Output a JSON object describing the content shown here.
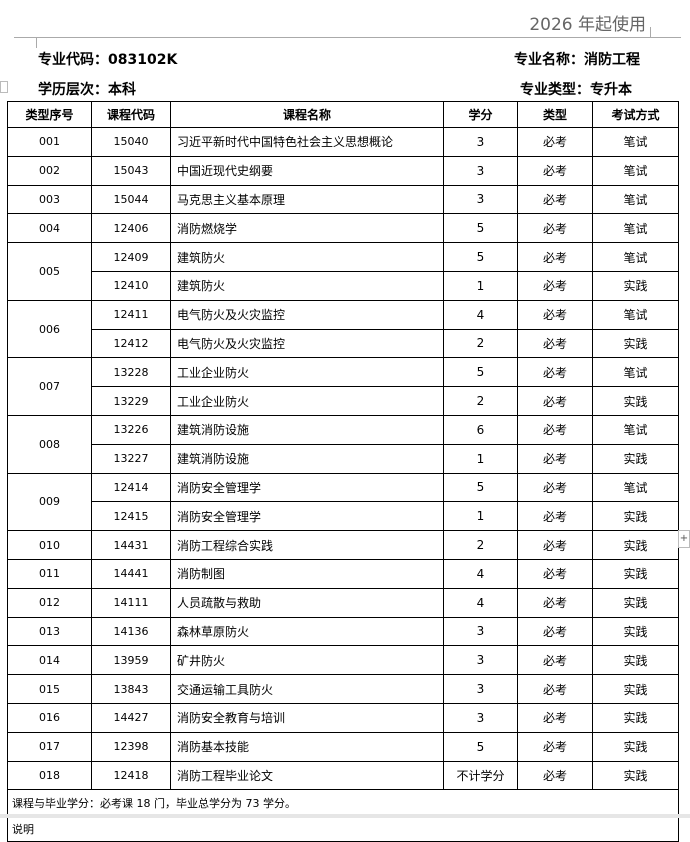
{
  "header_note": "2026 年起使用",
  "info": {
    "major_code": "专业代码：083102K",
    "major_name": "专业名称：消防工程",
    "level": "学历层次：本科",
    "major_type": "专业类型：专升本"
  },
  "table": {
    "columns": [
      "类型序号",
      "课程代码",
      "课程名称",
      "学分",
      "类型",
      "考试方式"
    ],
    "groups": [
      {
        "seq": "001",
        "courses": [
          {
            "code": "15040",
            "name": "习近平新时代中国特色社会主义思想概论",
            "credit": "3",
            "type": "必考",
            "exam": "笔试"
          }
        ]
      },
      {
        "seq": "002",
        "courses": [
          {
            "code": "15043",
            "name": "中国近现代史纲要",
            "credit": "3",
            "type": "必考",
            "exam": "笔试"
          }
        ]
      },
      {
        "seq": "003",
        "courses": [
          {
            "code": "15044",
            "name": "马克思主义基本原理",
            "credit": "3",
            "type": "必考",
            "exam": "笔试"
          }
        ]
      },
      {
        "seq": "004",
        "courses": [
          {
            "code": "12406",
            "name": "消防燃烧学",
            "credit": "5",
            "type": "必考",
            "exam": "笔试"
          }
        ]
      },
      {
        "seq": "005",
        "courses": [
          {
            "code": "12409",
            "name": "建筑防火",
            "credit": "5",
            "type": "必考",
            "exam": "笔试"
          },
          {
            "code": "12410",
            "name": "建筑防火",
            "credit": "1",
            "type": "必考",
            "exam": "实践"
          }
        ]
      },
      {
        "seq": "006",
        "courses": [
          {
            "code": "12411",
            "name": "电气防火及火灾监控",
            "credit": "4",
            "type": "必考",
            "exam": "笔试"
          },
          {
            "code": "12412",
            "name": "电气防火及火灾监控",
            "credit": "2",
            "type": "必考",
            "exam": "实践"
          }
        ]
      },
      {
        "seq": "007",
        "courses": [
          {
            "code": "13228",
            "name": "工业企业防火",
            "credit": "5",
            "type": "必考",
            "exam": "笔试"
          },
          {
            "code": "13229",
            "name": "工业企业防火",
            "credit": "2",
            "type": "必考",
            "exam": "实践"
          }
        ]
      },
      {
        "seq": "008",
        "courses": [
          {
            "code": "13226",
            "name": "建筑消防设施",
            "credit": "6",
            "type": "必考",
            "exam": "笔试"
          },
          {
            "code": "13227",
            "name": "建筑消防设施",
            "credit": "1",
            "type": "必考",
            "exam": "实践"
          }
        ]
      },
      {
        "seq": "009",
        "courses": [
          {
            "code": "12414",
            "name": "消防安全管理学",
            "credit": "5",
            "type": "必考",
            "exam": "笔试"
          },
          {
            "code": "12415",
            "name": "消防安全管理学",
            "credit": "1",
            "type": "必考",
            "exam": "实践"
          }
        ]
      },
      {
        "seq": "010",
        "courses": [
          {
            "code": "14431",
            "name": "消防工程综合实践",
            "credit": "2",
            "type": "必考",
            "exam": "实践"
          }
        ]
      },
      {
        "seq": "011",
        "courses": [
          {
            "code": "14441",
            "name": "消防制图",
            "credit": "4",
            "type": "必考",
            "exam": "实践"
          }
        ]
      },
      {
        "seq": "012",
        "courses": [
          {
            "code": "14111",
            "name": "人员疏散与救助",
            "credit": "4",
            "type": "必考",
            "exam": "实践"
          }
        ]
      },
      {
        "seq": "013",
        "courses": [
          {
            "code": "14136",
            "name": "森林草原防火",
            "credit": "3",
            "type": "必考",
            "exam": "实践"
          }
        ]
      },
      {
        "seq": "014",
        "courses": [
          {
            "code": "13959",
            "name": "矿井防火",
            "credit": "3",
            "type": "必考",
            "exam": "实践"
          }
        ]
      },
      {
        "seq": "015",
        "courses": [
          {
            "code": "13843",
            "name": "交通运输工具防火",
            "credit": "3",
            "type": "必考",
            "exam": "实践"
          }
        ]
      },
      {
        "seq": "016",
        "courses": [
          {
            "code": "14427",
            "name": "消防安全教育与培训",
            "credit": "3",
            "type": "必考",
            "exam": "实践"
          }
        ]
      },
      {
        "seq": "017",
        "courses": [
          {
            "code": "12398",
            "name": "消防基本技能",
            "credit": "5",
            "type": "必考",
            "exam": "实践"
          }
        ]
      },
      {
        "seq": "018",
        "courses": [
          {
            "code": "12418",
            "name": "消防工程毕业论文",
            "credit": "不计学分",
            "type": "必考",
            "exam": "实践"
          }
        ]
      }
    ],
    "footer": "课程与毕业学分：必考课 18 门，毕业总学分为 73 学分。",
    "notes_label": "说明"
  }
}
